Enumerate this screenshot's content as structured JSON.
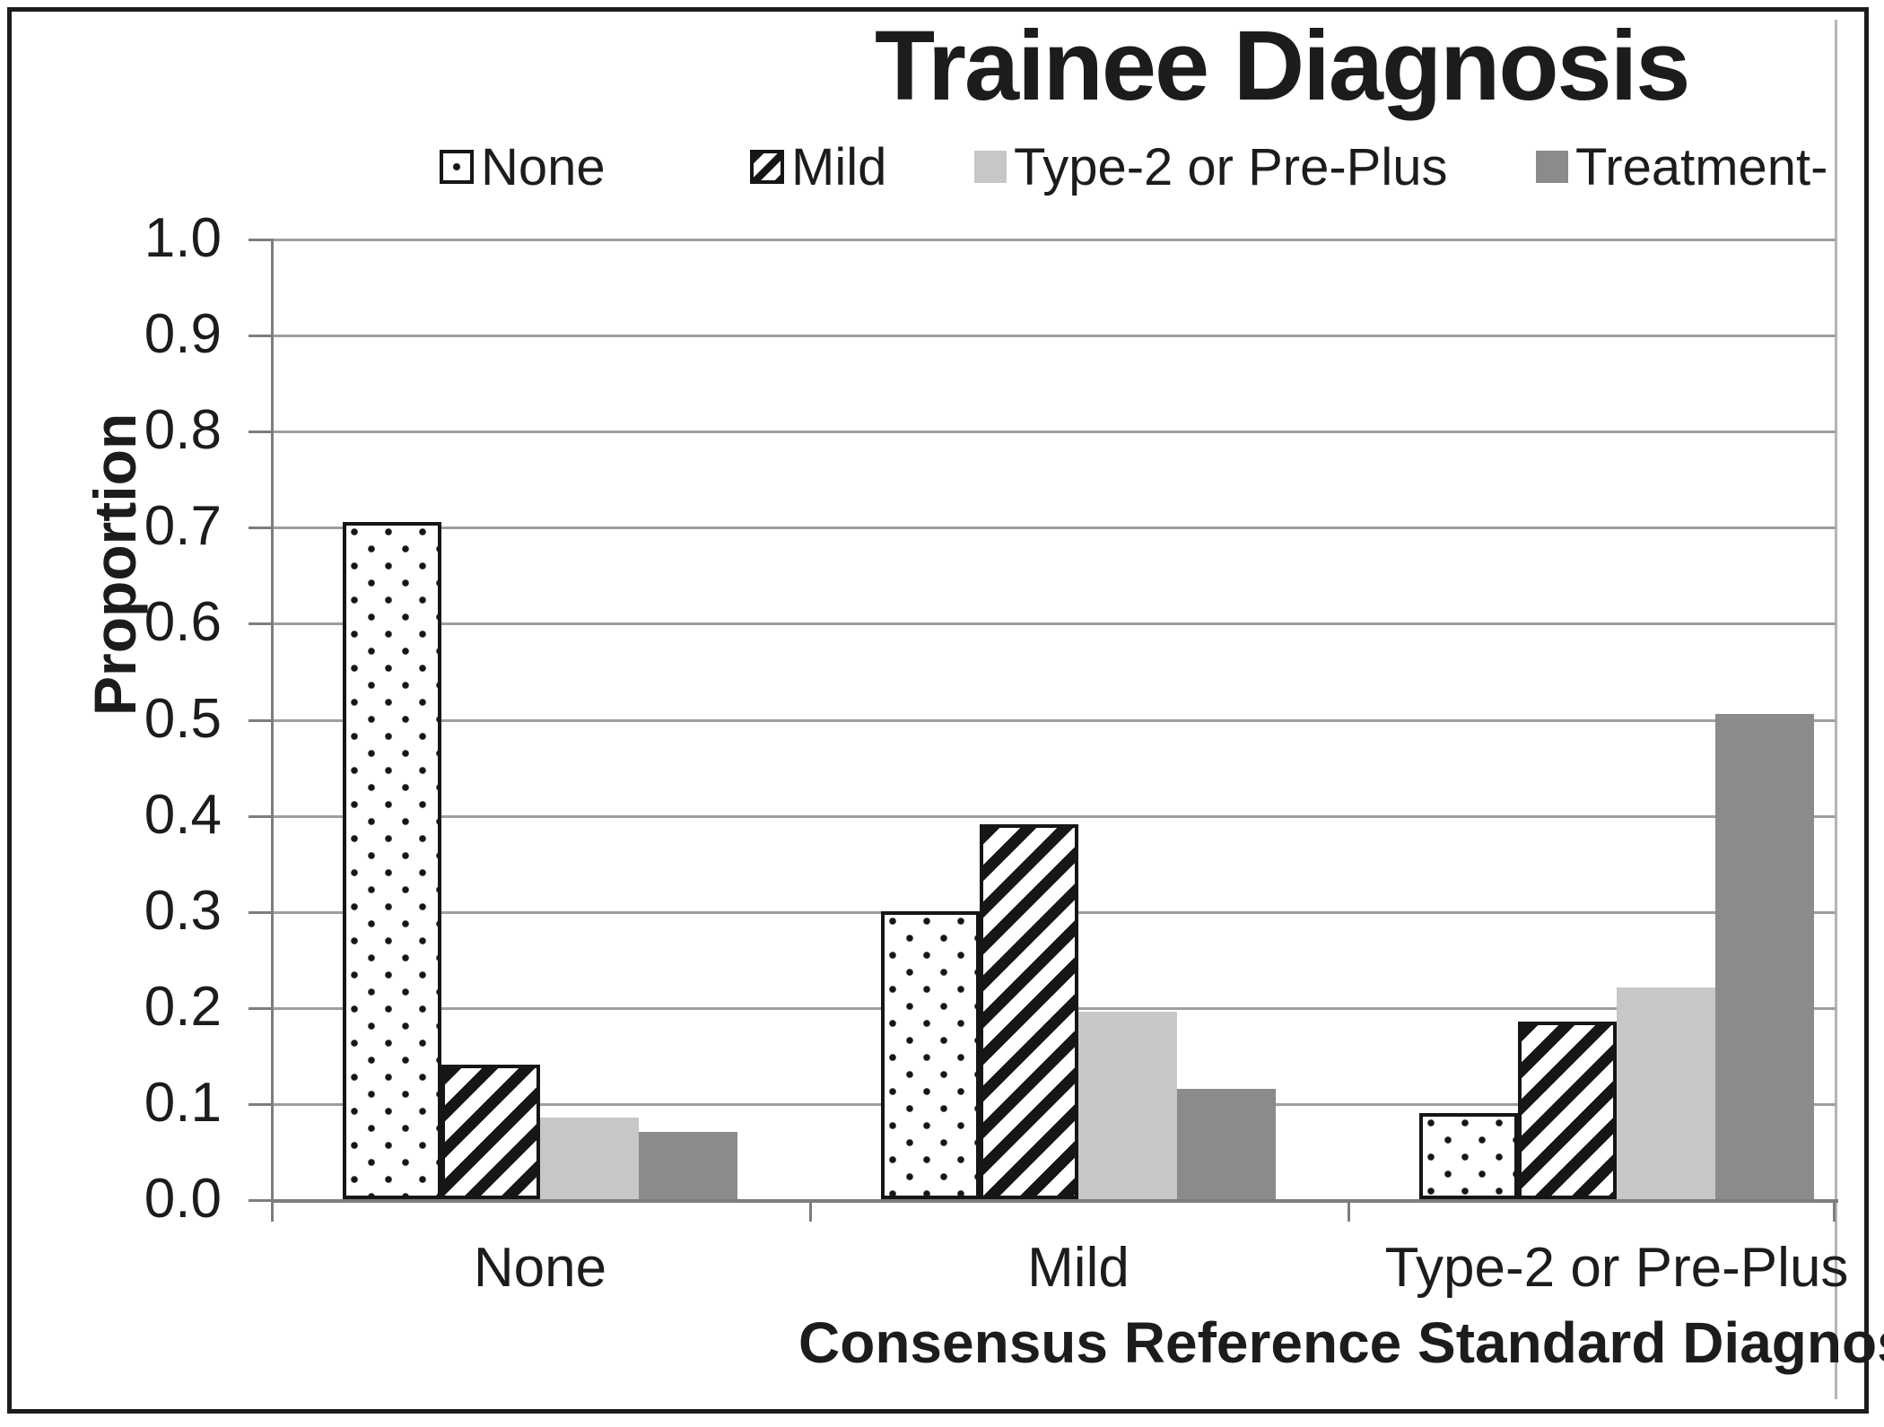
{
  "chart_data": {
    "type": "bar",
    "title": "Trainee Diagnosis",
    "xlabel": "Consensus Reference Standard Diagnos",
    "ylabel": "Proportion",
    "ylim": [
      0.0,
      1.0
    ],
    "ytick_step": 0.1,
    "yticks": [
      "1.0",
      "0.9",
      "0.8",
      "0.7",
      "0.6",
      "0.5",
      "0.4",
      "0.3",
      "0.2",
      "0.1",
      "0.0"
    ],
    "grid": true,
    "legend_position": "top",
    "categories": [
      "None",
      "Mild",
      "Type-2 or Pre-Plus"
    ],
    "series": [
      {
        "name": "None",
        "pattern": "dots",
        "fill": "#ffffff",
        "values": [
          0.705,
          0.3,
          0.09
        ]
      },
      {
        "name": "Mild",
        "pattern": "stripes",
        "fill": "#ffffff",
        "values": [
          0.14,
          0.39,
          0.185
        ]
      },
      {
        "name": "Type-2 or Pre-Plus",
        "pattern": "solid",
        "fill": "#c7c7c7",
        "values": [
          0.085,
          0.195,
          0.22
        ]
      },
      {
        "name": "Treatment-",
        "pattern": "solid",
        "fill": "#8b8b8b",
        "values": [
          0.07,
          0.115,
          0.505
        ]
      }
    ],
    "colors": {
      "text": "#1c1c1c",
      "gridline": "#9e9e9e",
      "axis": "#7d7d7d",
      "light_gray_series": "#c7c7c7",
      "dark_gray_series": "#8b8b8b",
      "pattern_ink": "#161616"
    }
  }
}
